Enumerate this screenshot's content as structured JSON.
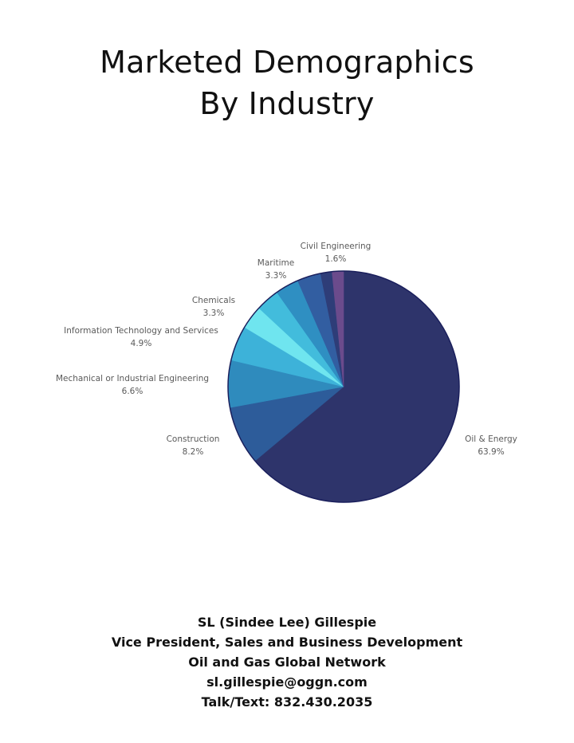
{
  "chart_data": {
    "type": "pie",
    "title": [
      "Marketed Demographics",
      "By Industry"
    ],
    "slices": [
      {
        "label": "Oil & Energy",
        "percent_label": "63.9%",
        "value": 63.9,
        "color": "#2e346b"
      },
      {
        "label": "Construction",
        "percent_label": "8.2%",
        "value": 8.2,
        "color": "#2d5c9a"
      },
      {
        "label": "Mechanical or Industrial Engineering",
        "percent_label": "6.6%",
        "value": 6.6,
        "color": "#2f8bbd"
      },
      {
        "label": "Information Technology and Services",
        "percent_label": "4.9%",
        "value": 4.9,
        "color": "#3db2d9"
      },
      {
        "label": "",
        "percent_label": "",
        "value": 3.3,
        "color": "#6fe5ef"
      },
      {
        "label": "Chemicals",
        "percent_label": "3.3%",
        "value": 3.3,
        "color": "#42bcdc"
      },
      {
        "label": "",
        "percent_label": "",
        "value": 3.3,
        "color": "#2f8fc2"
      },
      {
        "label": "Maritime",
        "percent_label": "3.3%",
        "value": 3.3,
        "color": "#325ea1"
      },
      {
        "label": "",
        "percent_label": "",
        "value": 1.6,
        "color": "#2e3d78"
      },
      {
        "label": "Civil Engineering",
        "percent_label": "1.6%",
        "value": 1.6,
        "color": "#6b4b8c"
      }
    ],
    "outline_color": "#1a1f5c"
  },
  "footer": {
    "name": "SL (Sindee Lee) Gillespie",
    "role": "Vice President, Sales and Business Development",
    "company": "Oil and Gas Global Network",
    "email": "sl.gillespie@oggn.com",
    "phone": "Talk/Text: 832.430.2035"
  }
}
